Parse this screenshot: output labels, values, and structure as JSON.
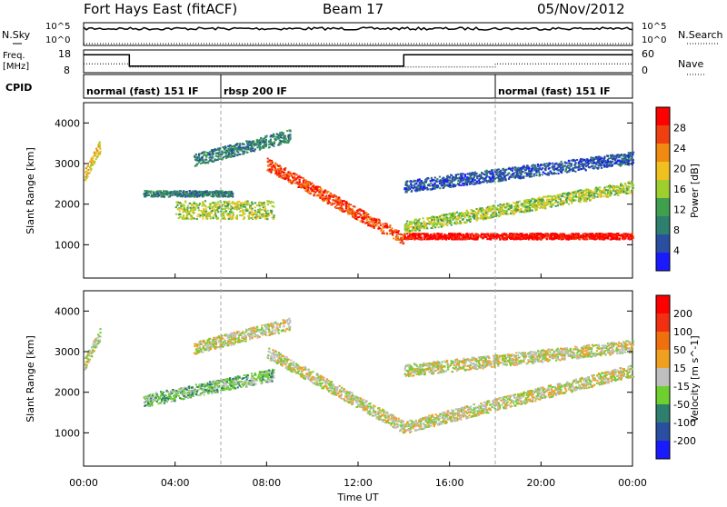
{
  "header": {
    "radar": "Fort Hays East (fitACF)",
    "beam": "Beam 17",
    "date": "05/Nov/2012"
  },
  "strip": {
    "nsky_label": "N.Sky",
    "nsky_top": "10^5",
    "nsky_bottom": "10^0",
    "nsearch_label": "N.Search",
    "nsearch_top": "10^5",
    "nsearch_bottom": "10^0",
    "freq_label": "Freq.",
    "freq_unit": "[MHz]",
    "freq_top": "18",
    "freq_bottom": "8",
    "nave_label": "Nave",
    "nave_top": "60",
    "nave_bottom": "0",
    "cpid_label": "CPID",
    "cpid_segments": [
      {
        "label": "normal (fast) 151 IF",
        "start": 0,
        "end": 6
      },
      {
        "label": "rbsp 200 IF",
        "start": 6,
        "end": 18
      },
      {
        "label": "normal (fast) 151 IF",
        "start": 18,
        "end": 24
      }
    ]
  },
  "colors": {
    "power_scale": [
      "#1a1aff",
      "#2a4fa0",
      "#2e7f6e",
      "#3f9f4f",
      "#9fcf2f",
      "#f0c020",
      "#f08a10",
      "#f04010",
      "#ff0000"
    ],
    "velocity_scale": [
      "#1a1aff",
      "#2a4fa0",
      "#2e7f6e",
      "#6fcf2f",
      "#bfbfbf",
      "#f0a020",
      "#f07010",
      "#f03010",
      "#ff0000"
    ]
  },
  "chart_data": [
    {
      "type": "line",
      "name": "frequency",
      "x": [
        0,
        2,
        2,
        14,
        14,
        24
      ],
      "y": [
        16.5,
        16.5,
        10.5,
        10.5,
        16.5,
        16.5
      ],
      "ylim": [
        8,
        18
      ],
      "xlim": [
        0,
        24
      ]
    },
    {
      "type": "line",
      "name": "nave",
      "x": [
        0,
        2,
        2,
        18,
        18,
        24
      ],
      "y": [
        22,
        22,
        12,
        12,
        22,
        22
      ],
      "ylim": [
        0,
        60
      ],
      "xlim": [
        0,
        24
      ]
    },
    {
      "type": "heatmap",
      "ylabel": "Slant Range [km]",
      "colorbar_label": "Power [dB]",
      "colorbar_ticks": [
        "28",
        "24",
        "20",
        "16",
        "12",
        "8",
        "4"
      ],
      "xlim": [
        0,
        24
      ],
      "ylim": [
        180,
        4500
      ],
      "y_ticks": [
        1000,
        2000,
        3000,
        4000
      ],
      "echo_bands": [
        {
          "t0": 0.0,
          "t1": 0.7,
          "r0": 2550,
          "r1": 3300,
          "level": 5
        },
        {
          "t0": 2.6,
          "t1": 6.5,
          "r0": 2200,
          "r1": 2350,
          "level": 2
        },
        {
          "t0": 4.0,
          "t1": 8.3,
          "r0": 1650,
          "r1": 2100,
          "level": 4
        },
        {
          "t0": 4.8,
          "t1": 9.0,
          "r0": 2950,
          "r1": 3550,
          "level": 2
        },
        {
          "t0": 8.0,
          "t1": 14.0,
          "r0": 2850,
          "r1": 1000,
          "level": 7
        },
        {
          "t0": 14.0,
          "t1": 24.0,
          "r0": 1150,
          "r1": 1300,
          "level": 8
        },
        {
          "t0": 14.0,
          "t1": 24.0,
          "r0": 1300,
          "r1": 2300,
          "level": 4
        },
        {
          "t0": 14.0,
          "t1": 24.0,
          "r0": 2300,
          "r1": 3000,
          "level": 1
        }
      ]
    },
    {
      "type": "heatmap",
      "xlabel": "Time UT",
      "ylabel": "Slant Range [km]",
      "colorbar_label": "Velocity [m s^-1]",
      "colorbar_ticks": [
        "200",
        "100",
        "50",
        "15",
        "-15",
        "-50",
        "-100",
        "-200"
      ],
      "xlim": [
        0,
        24
      ],
      "ylim": [
        180,
        4500
      ],
      "y_ticks": [
        1000,
        2000,
        3000,
        4000
      ],
      "x_ticks": [
        "00:00",
        "04:00",
        "08:00",
        "12:00",
        "16:00",
        "20:00",
        "00:00"
      ],
      "echo_bands": [
        {
          "t0": 0.0,
          "t1": 0.7,
          "r0": 2550,
          "r1": 3300,
          "level": 4
        },
        {
          "t0": 2.6,
          "t1": 8.3,
          "r0": 1650,
          "r1": 2300,
          "level": 3
        },
        {
          "t0": 4.8,
          "t1": 9.0,
          "r0": 2950,
          "r1": 3550,
          "level": 4
        },
        {
          "t0": 8.0,
          "t1": 14.0,
          "r0": 2850,
          "r1": 1000,
          "level": 4
        },
        {
          "t0": 14.0,
          "t1": 24.0,
          "r0": 1000,
          "r1": 2400,
          "level": 4
        },
        {
          "t0": 14.0,
          "t1": 24.0,
          "r0": 2400,
          "r1": 3000,
          "level": 4
        }
      ]
    }
  ]
}
